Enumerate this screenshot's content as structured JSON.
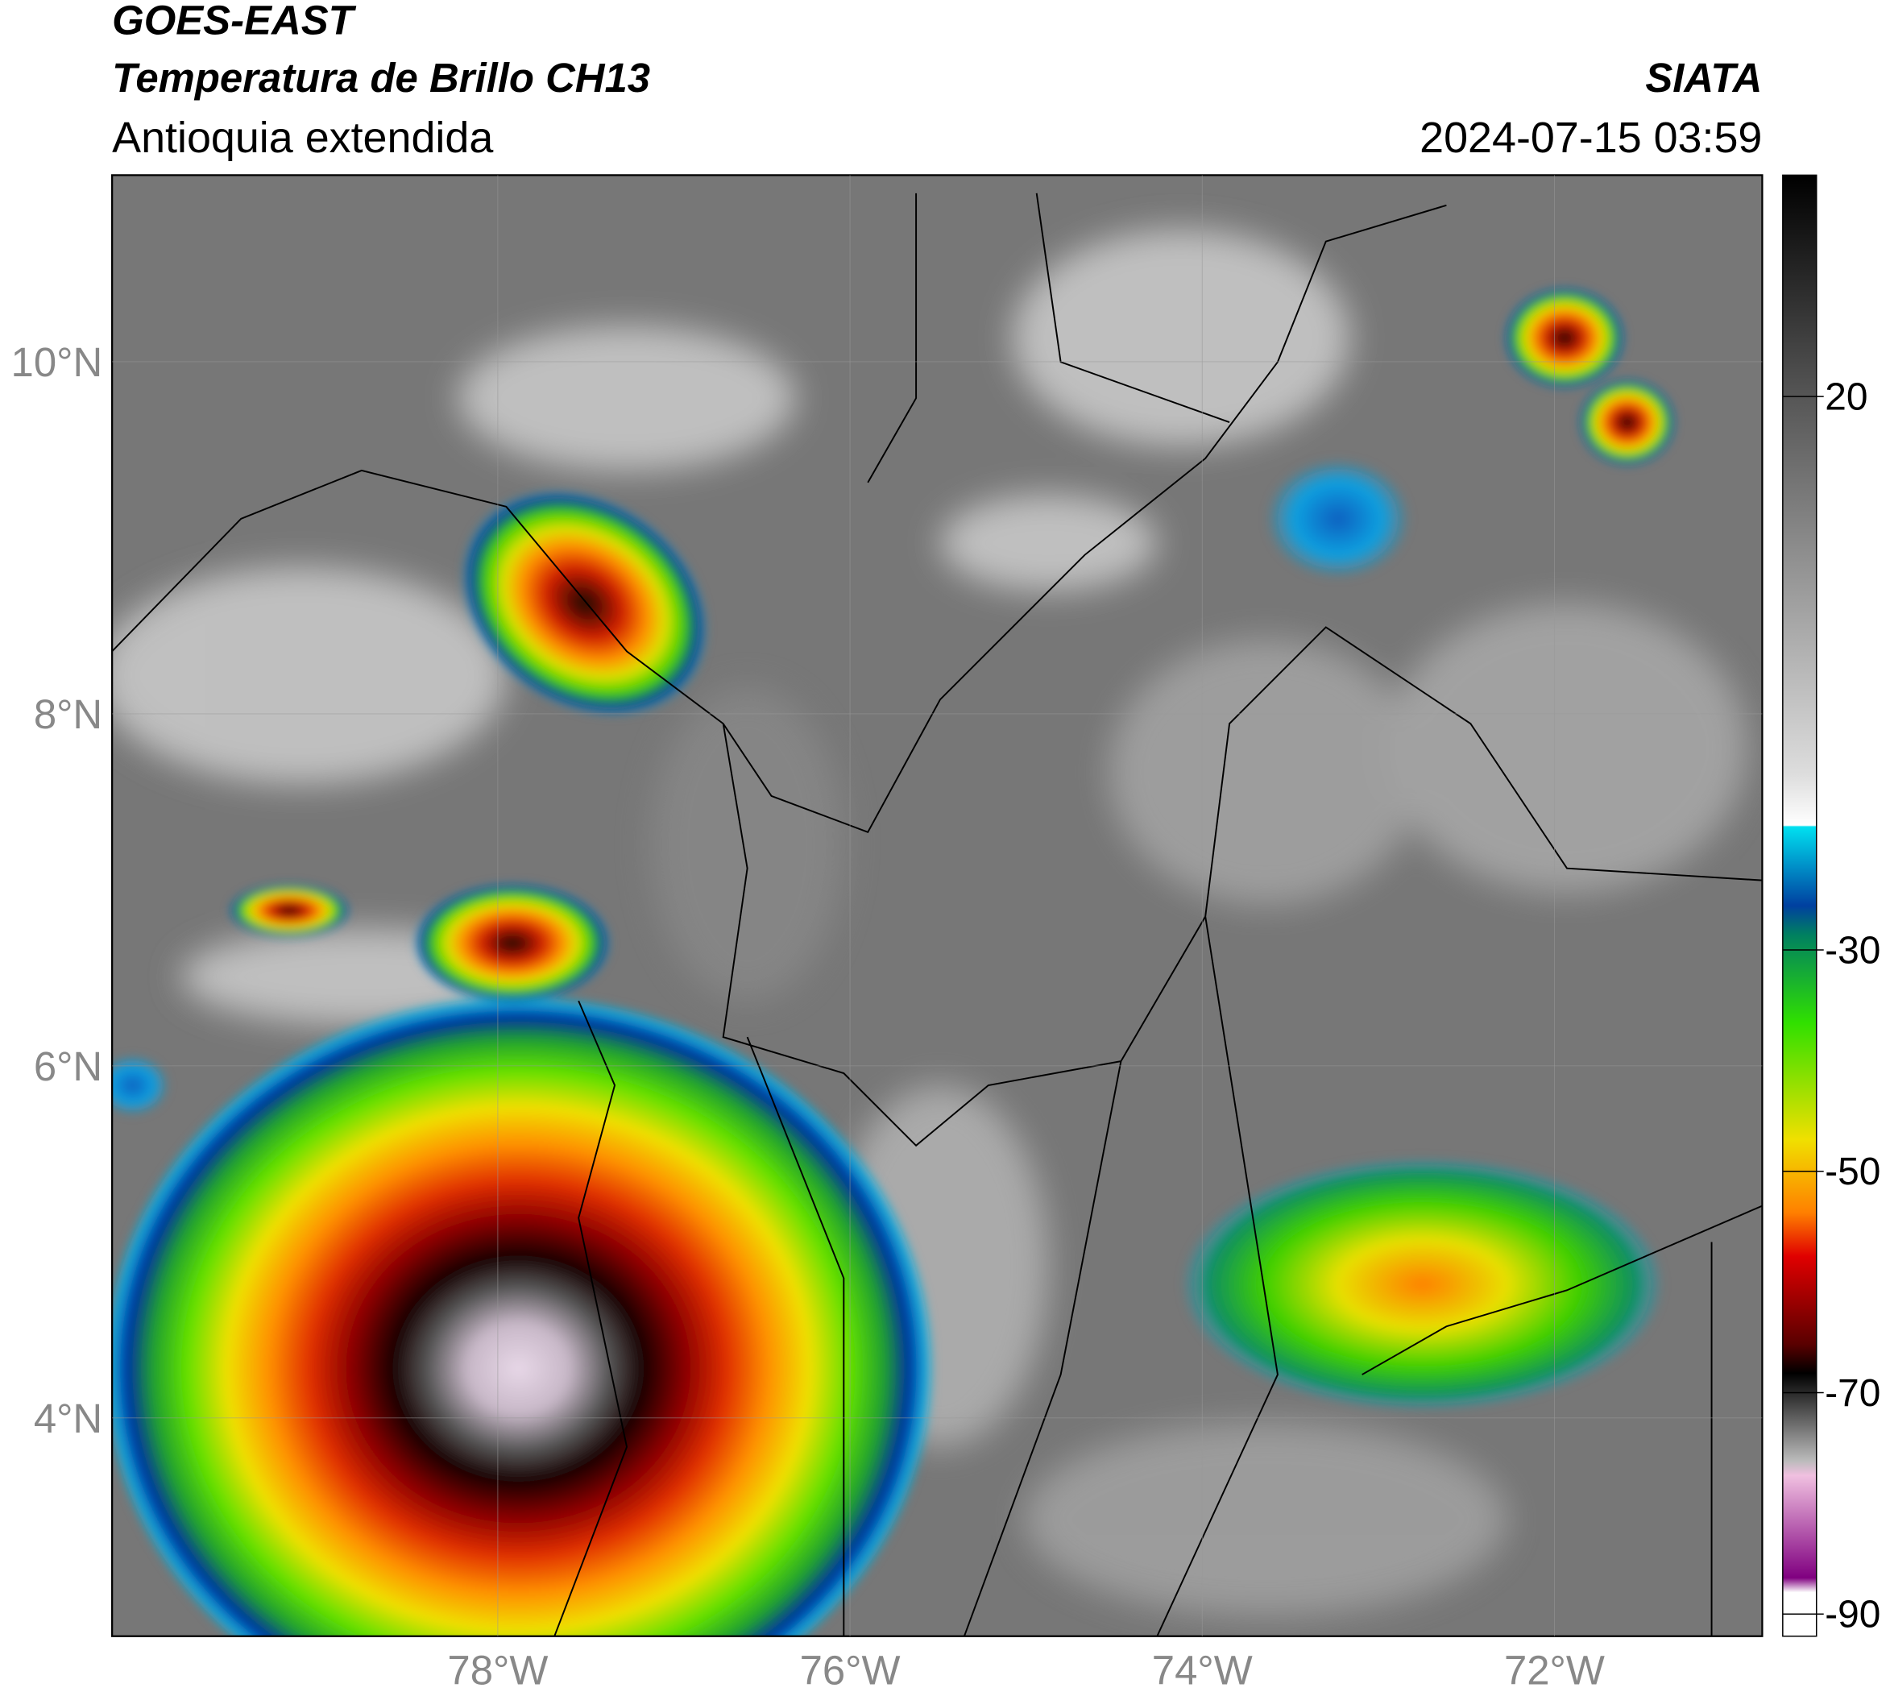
{
  "header": {
    "satellite": "GOES-EAST",
    "product": "Temperatura de Brillo CH13",
    "region": "Antioquia extendida",
    "source": "SIATA",
    "datetime": "2024-07-15 03:59"
  },
  "map": {
    "lonlim": [
      -80.19,
      -70.82
    ],
    "latlim": [
      2.76,
      11.06
    ],
    "lon_ticks": [
      {
        "value": -78,
        "label": "78°W"
      },
      {
        "value": -76,
        "label": "76°W"
      },
      {
        "value": -74,
        "label": "74°W"
      },
      {
        "value": -72,
        "label": "72°W"
      }
    ],
    "lat_ticks": [
      {
        "value": 10,
        "label": "10°N"
      },
      {
        "value": 8,
        "label": "8°N"
      },
      {
        "value": 6,
        "label": "6°N"
      },
      {
        "value": 4,
        "label": "4°N"
      }
    ]
  },
  "colorbar": {
    "lim": [
      -92,
      40
    ],
    "ticks": [
      20,
      -30,
      -50,
      -70,
      -90
    ]
  }
}
